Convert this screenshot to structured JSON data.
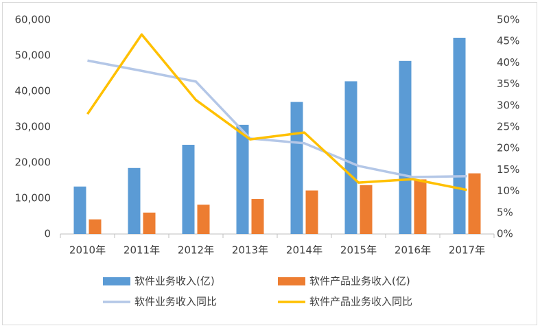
{
  "chart_data": {
    "type": "bar",
    "categories": [
      "2010年",
      "2011年",
      "2012年",
      "2013年",
      "2014年",
      "2015年",
      "2016年",
      "2017年"
    ],
    "series": [
      {
        "name": "软件业务收入(亿)",
        "type": "bar",
        "axis": "y",
        "color": "#5b9bd5",
        "values": [
          13300,
          18500,
          25000,
          30600,
          37000,
          42800,
          48500,
          55000
        ]
      },
      {
        "name": "软件产品业务收入(亿)",
        "type": "bar",
        "axis": "y",
        "color": "#ed7d31",
        "values": [
          4100,
          6000,
          8200,
          9800,
          12200,
          13700,
          15300,
          17000
        ]
      },
      {
        "name": "软件业务收入同比",
        "type": "line",
        "axis": "y2",
        "color": "#b4c7e7",
        "values": [
          40.5,
          38.1,
          35.6,
          22.3,
          21.2,
          15.9,
          13.3,
          13.5
        ]
      },
      {
        "name": "软件产品业务收入同比",
        "type": "line",
        "axis": "y2",
        "color": "#ffc000",
        "values": [
          28.0,
          46.6,
          31.3,
          22.1,
          23.7,
          12.0,
          12.8,
          10.3
        ]
      }
    ],
    "ylim": [
      0,
      60000
    ],
    "yticks": [
      0,
      {
        "value": 10000,
        "label": "10,000"
      },
      {
        "value": 20000,
        "label": "20,000"
      },
      {
        "value": 30000,
        "label": "30,000"
      },
      {
        "value": 40000,
        "label": "40,000"
      },
      {
        "value": 50000,
        "label": "50,000"
      },
      {
        "value": 60000,
        "label": "60,000"
      }
    ],
    "y2lim": [
      0,
      50
    ],
    "y2ticks": [
      {
        "value": 0,
        "label": "0%"
      },
      {
        "value": 5,
        "label": "5%"
      },
      {
        "value": 10,
        "label": "10%"
      },
      {
        "value": 15,
        "label": "15%"
      },
      {
        "value": 20,
        "label": "20%"
      },
      {
        "value": 25,
        "label": "25%"
      },
      {
        "value": 30,
        "label": "30%"
      },
      {
        "value": 35,
        "label": "35%"
      },
      {
        "value": 40,
        "label": "40%"
      },
      {
        "value": 45,
        "label": "45%"
      },
      {
        "value": 50,
        "label": "50%"
      }
    ],
    "grid": false,
    "legend": "bottom"
  }
}
